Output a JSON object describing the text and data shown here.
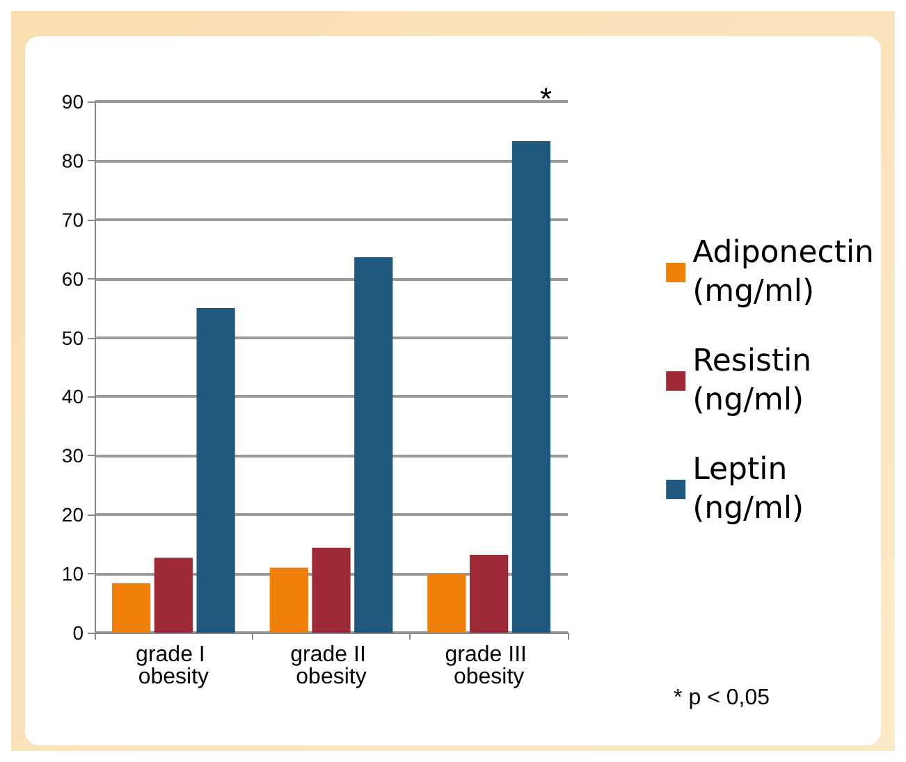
{
  "chart_data": {
    "type": "bar",
    "categories": [
      "grade I obesity",
      "grade II obesity",
      "grade III obesity"
    ],
    "series": [
      {
        "name": "Adiponectin (mg/ml)",
        "color": "#f07f09",
        "values": [
          8.4,
          11,
          9.9
        ]
      },
      {
        "name": "Resistin (ng/ml)",
        "color": "#9e2a37",
        "values": [
          12.7,
          14.4,
          13.2
        ]
      },
      {
        "name": "Leptin (ng/ml)",
        "color": "#1f5a7e",
        "values": [
          55,
          63.6,
          83.3
        ]
      }
    ],
    "ylim": [
      0,
      90
    ],
    "yticks": [
      0,
      10,
      20,
      30,
      40,
      50,
      60,
      70,
      80,
      90
    ],
    "grid": "y",
    "legend": "right",
    "annotations": [
      "*",
      "* p < 0,05"
    ]
  }
}
